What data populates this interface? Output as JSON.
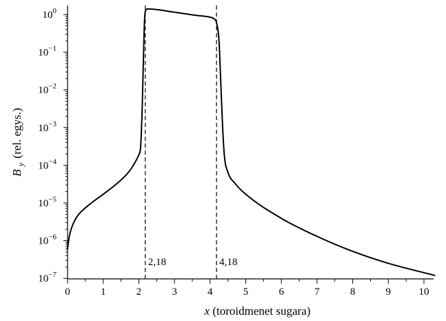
{
  "chart_data": {
    "type": "line",
    "title": "",
    "xlabel": {
      "var": "x",
      "text": "(toroidmenet sugara)"
    },
    "ylabel": {
      "var": "B",
      "sub": "y",
      "text": "(rel. egys.)"
    },
    "x_scale": "linear",
    "y_scale": "log",
    "xlim": [
      0,
      10.4
    ],
    "ylim": [
      1e-07,
      2.2
    ],
    "x_ticks": [
      0,
      1,
      2,
      3,
      4,
      5,
      6,
      7,
      8,
      9,
      10
    ],
    "y_ticks": [
      {
        "value": 1,
        "base": "10",
        "exp": "0"
      },
      {
        "value": 0.1,
        "base": "10",
        "exp": "−1"
      },
      {
        "value": 0.01,
        "base": "10",
        "exp": "−2"
      },
      {
        "value": 0.001,
        "base": "10",
        "exp": "−3"
      },
      {
        "value": 0.0001,
        "base": "10",
        "exp": "−4"
      },
      {
        "value": 1e-05,
        "base": "10",
        "exp": "−5"
      },
      {
        "value": 1e-06,
        "base": "10",
        "exp": "−6"
      },
      {
        "value": 1e-07,
        "base": "10",
        "exp": "−7"
      }
    ],
    "grid": false,
    "legend": "none",
    "series": [
      {
        "x": [
          0.0,
          0.05,
          0.1,
          0.2,
          0.3,
          0.5,
          0.7,
          1.0,
          1.3,
          1.6,
          1.8,
          2.0,
          2.05,
          2.1,
          2.15,
          2.18,
          2.25,
          3.0,
          3.6,
          4.0,
          4.1,
          4.18,
          4.25,
          4.3,
          4.35,
          4.4,
          4.5,
          4.7,
          5.0,
          6.0,
          7.0,
          8.0,
          9.0,
          10.3
        ],
        "y": [
          6e-07,
          1.3e-06,
          2e-06,
          3.4e-06,
          4.8e-06,
          7.4e-06,
          1.05e-05,
          1.7e-05,
          2.8e-05,
          5e-05,
          8.5e-05,
          0.00019,
          0.0003,
          0.005,
          0.4,
          1.2,
          1.4,
          1.15,
          0.95,
          0.85,
          0.78,
          0.6,
          0.2,
          0.015,
          0.0011,
          0.00018,
          6.5e-05,
          3.3e-05,
          1.7e-05,
          3.9e-06,
          1.3e-06,
          5.2e-07,
          2.5e-07,
          1.2e-07
        ]
      }
    ],
    "annotations": [
      {
        "type": "vline",
        "x": 2.18,
        "label": "2,18",
        "style": "dashed"
      },
      {
        "type": "vline",
        "x": 4.18,
        "label": "4,18",
        "style": "dashed"
      }
    ]
  }
}
